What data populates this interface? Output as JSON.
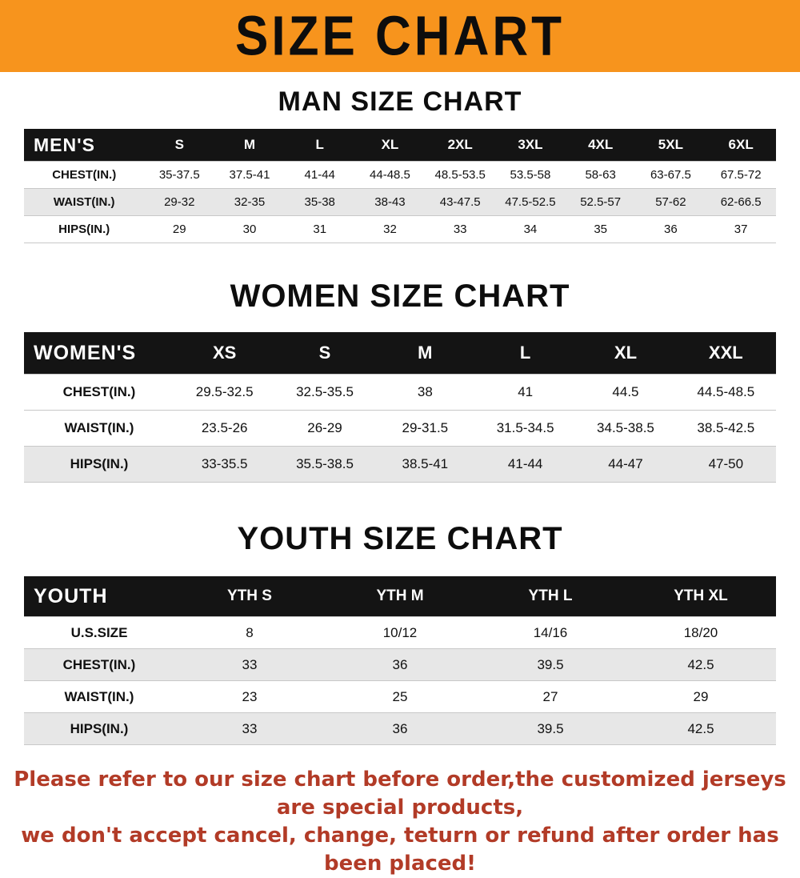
{
  "banner": {
    "title": "SIZE CHART",
    "bg_color": "#f7941d"
  },
  "footer": {
    "line1": "Please refer to our size chart before order,the customized jerseys are special products,",
    "line2": "we don't accept cancel, change, teturn or refund after order has been placed!",
    "text_color": "#b23b27"
  },
  "chart_data": [
    {
      "type": "table",
      "slug": "men",
      "title": "MAN SIZE CHART",
      "corner_label": "MEN'S",
      "columns": [
        "S",
        "M",
        "L",
        "XL",
        "2XL",
        "3XL",
        "4XL",
        "5XL",
        "6XL"
      ],
      "rows": [
        {
          "name": "CHEST(IN.)",
          "values": [
            "35-37.5",
            "37.5-41",
            "41-44",
            "44-48.5",
            "48.5-53.5",
            "53.5-58",
            "58-63",
            "63-67.5",
            "67.5-72"
          ]
        },
        {
          "name": "WAIST(IN.)",
          "values": [
            "29-32",
            "32-35",
            "35-38",
            "38-43",
            "43-47.5",
            "47.5-52.5",
            "52.5-57",
            "57-62",
            "62-66.5"
          ]
        },
        {
          "name": "HIPS(IN.)",
          "values": [
            "29",
            "30",
            "31",
            "32",
            "33",
            "34",
            "35",
            "36",
            "37"
          ]
        }
      ]
    },
    {
      "type": "table",
      "slug": "women",
      "title": "WOMEN SIZE CHART",
      "corner_label": "WOMEN'S",
      "columns": [
        "XS",
        "S",
        "M",
        "L",
        "XL",
        "XXL"
      ],
      "rows": [
        {
          "name": "CHEST(IN.)",
          "values": [
            "29.5-32.5",
            "32.5-35.5",
            "38",
            "41",
            "44.5",
            "44.5-48.5"
          ]
        },
        {
          "name": "WAIST(IN.)",
          "values": [
            "23.5-26",
            "26-29",
            "29-31.5",
            "31.5-34.5",
            "34.5-38.5",
            "38.5-42.5"
          ]
        },
        {
          "name": "HIPS(IN.)",
          "values": [
            "33-35.5",
            "35.5-38.5",
            "38.5-41",
            "41-44",
            "44-47",
            "47-50"
          ]
        }
      ]
    },
    {
      "type": "table",
      "slug": "youth",
      "title": "YOUTH SIZE CHART",
      "corner_label": "YOUTH",
      "columns": [
        "YTH S",
        "YTH M",
        "YTH L",
        "YTH XL"
      ],
      "rows": [
        {
          "name": "U.S.SIZE",
          "values": [
            "8",
            "10/12",
            "14/16",
            "18/20"
          ]
        },
        {
          "name": "CHEST(IN.)",
          "values": [
            "33",
            "36",
            "39.5",
            "42.5"
          ]
        },
        {
          "name": "WAIST(IN.)",
          "values": [
            "23",
            "25",
            "27",
            "29"
          ]
        },
        {
          "name": "HIPS(IN.)",
          "values": [
            "33",
            "36",
            "39.5",
            "42.5"
          ]
        }
      ]
    }
  ]
}
